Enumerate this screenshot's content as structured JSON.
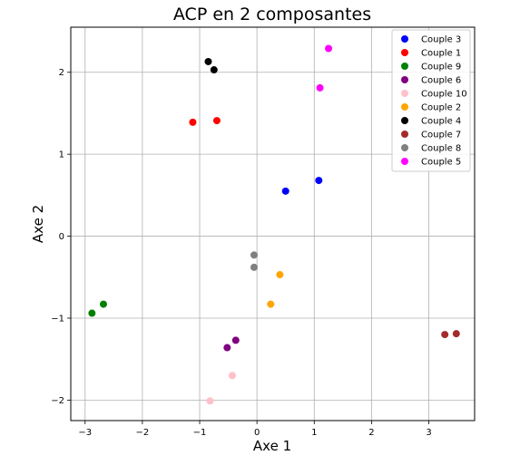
{
  "chart_data": {
    "type": "scatter",
    "title": "ACP en 2 composantes",
    "xlabel": "Axe 1",
    "ylabel": "Axe 2",
    "xlim": [
      -3.25,
      3.8
    ],
    "ylim": [
      -2.25,
      2.55
    ],
    "xticks": [
      -3,
      -2,
      -1,
      0,
      1,
      2,
      3
    ],
    "yticks": [
      -2,
      -1,
      0,
      1,
      2
    ],
    "grid": true,
    "legend_position": "top-right",
    "series": [
      {
        "name": "Couple 3",
        "color": "#0000ff",
        "points": [
          [
            0.5,
            0.55
          ],
          [
            1.08,
            0.68
          ]
        ]
      },
      {
        "name": "Couple 1",
        "color": "#ff0000",
        "points": [
          [
            -1.12,
            1.39
          ],
          [
            -0.7,
            1.41
          ]
        ]
      },
      {
        "name": "Couple 9",
        "color": "#008000",
        "points": [
          [
            -2.88,
            -0.94
          ],
          [
            -2.68,
            -0.83
          ]
        ]
      },
      {
        "name": "Couple 6",
        "color": "#800080",
        "points": [
          [
            -0.52,
            -1.36
          ],
          [
            -0.37,
            -1.27
          ]
        ]
      },
      {
        "name": "Couple 10",
        "color": "#ffc0cb",
        "points": [
          [
            -0.43,
            -1.7
          ],
          [
            -0.82,
            -2.01
          ]
        ]
      },
      {
        "name": "Couple 2",
        "color": "#ffa500",
        "points": [
          [
            0.4,
            -0.47
          ],
          [
            0.24,
            -0.83
          ]
        ]
      },
      {
        "name": "Couple 4",
        "color": "#000000",
        "points": [
          [
            -0.85,
            2.13
          ],
          [
            -0.75,
            2.03
          ]
        ]
      },
      {
        "name": "Couple 7",
        "color": "#a52a2a",
        "points": [
          [
            3.28,
            -1.2
          ],
          [
            3.48,
            -1.19
          ]
        ]
      },
      {
        "name": "Couple 8",
        "color": "#808080",
        "points": [
          [
            -0.05,
            -0.23
          ],
          [
            -0.05,
            -0.38
          ]
        ]
      },
      {
        "name": "Couple 5",
        "color": "#ff00ff",
        "points": [
          [
            1.25,
            2.29
          ],
          [
            1.1,
            1.81
          ]
        ]
      }
    ]
  }
}
